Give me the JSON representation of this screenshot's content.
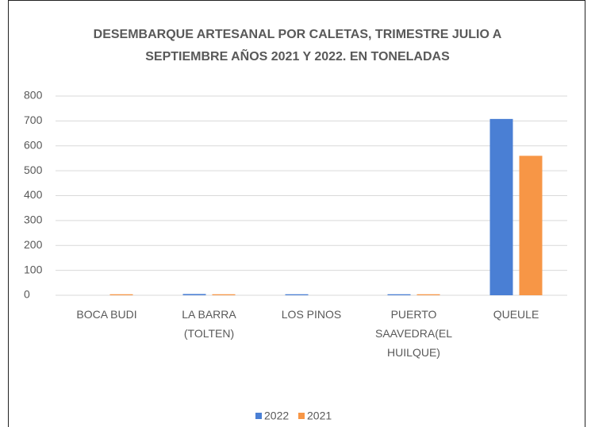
{
  "chart_data": {
    "type": "bar",
    "title": "DESEMBARQUE ARTESANAL POR CALETAS, TRIMESTRE JULIO A SEPTIEMBRE AÑOS 2021 Y 2022. EN TONELADAS",
    "categories": [
      "BOCA BUDI",
      "LA BARRA (TOLTEN)",
      "LOS PINOS",
      "PUERTO SAAVEDRA(EL HUILQUE)",
      "QUEULE"
    ],
    "series": [
      {
        "name": "2022",
        "color": "#4a7fd4",
        "values": [
          0,
          5,
          4,
          4,
          708
        ]
      },
      {
        "name": "2021",
        "color": "#f79646",
        "values": [
          4,
          4,
          0,
          4,
          560
        ]
      }
    ],
    "ylim": [
      0,
      800
    ],
    "yticks": [
      0,
      100,
      200,
      300,
      400,
      500,
      600,
      700,
      800
    ],
    "grid": true,
    "legend": "bottom"
  }
}
